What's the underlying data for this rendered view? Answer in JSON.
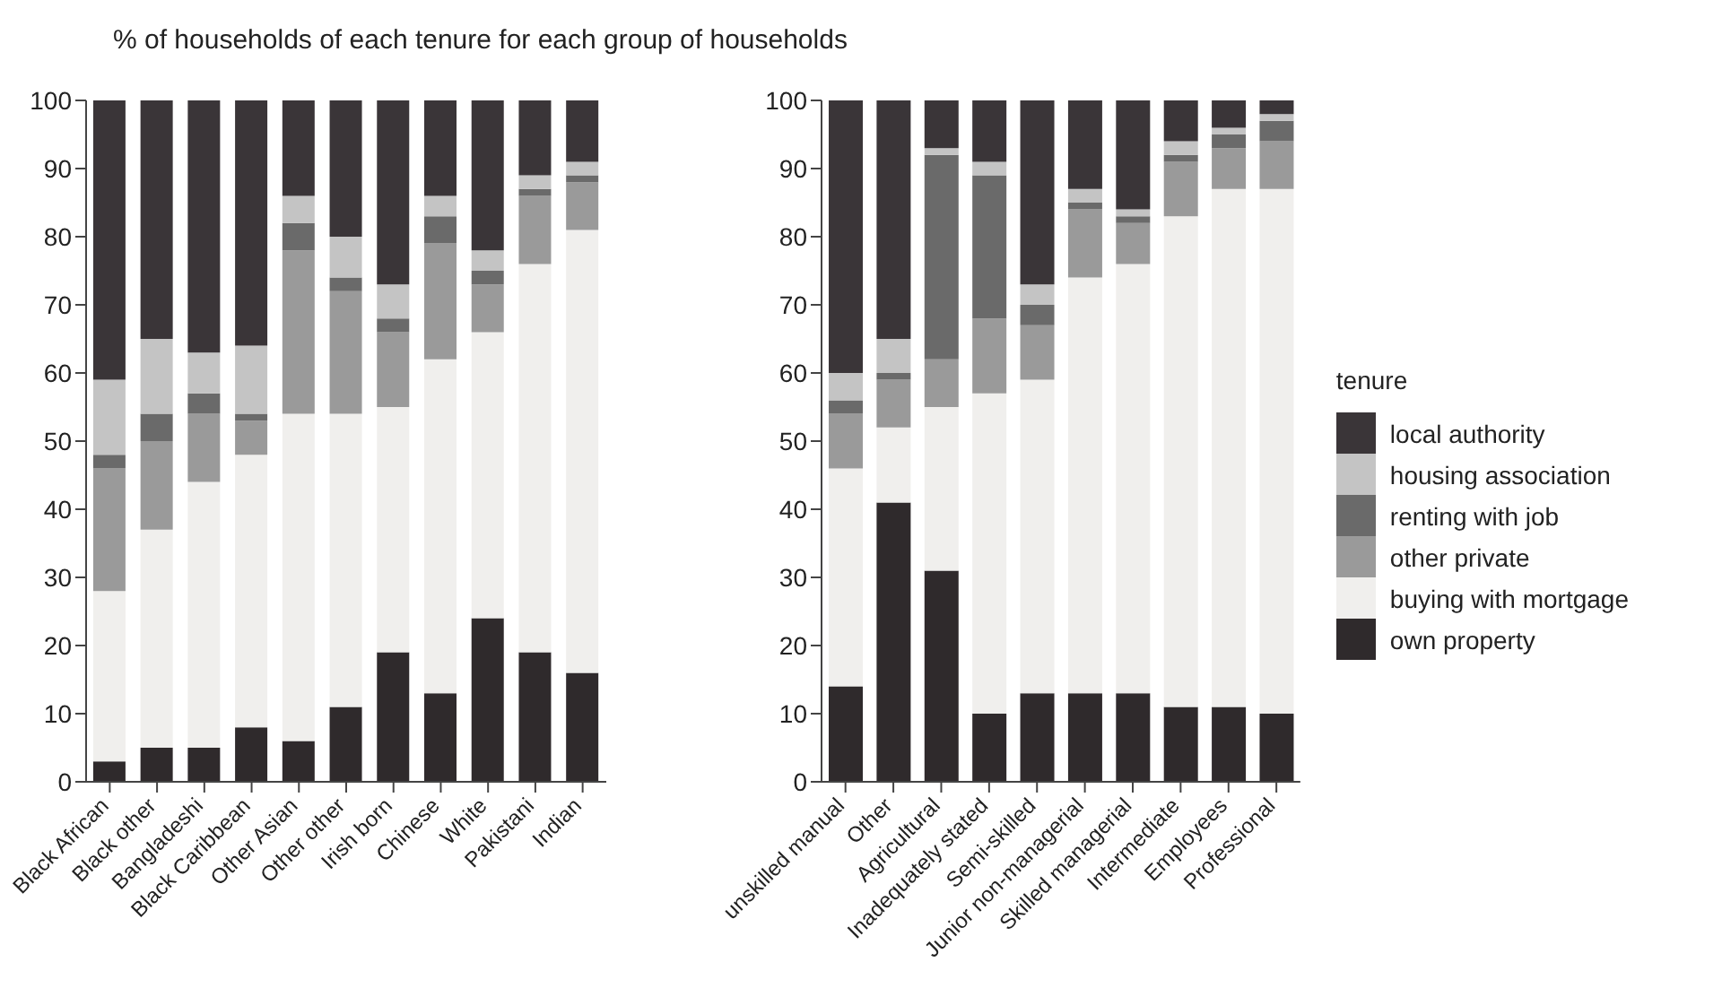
{
  "chart_data": [
    {
      "type": "bar",
      "title": "% of households of each tenure for each group of households",
      "stacked": true,
      "legend": false,
      "categories": [
        "Black African",
        "Black other",
        "Bangladeshi",
        "Black Caribbean",
        "Other Asian",
        "Other other",
        "Irish born",
        "Chinese",
        "White",
        "Pakistani",
        "Indian"
      ],
      "ylim": [
        0,
        100
      ],
      "yticks": [
        0,
        10,
        20,
        30,
        40,
        50,
        60,
        70,
        80,
        90,
        100
      ],
      "grid": false,
      "series": [
        {
          "color": "#2f2a2c",
          "values": [
            3,
            5,
            5,
            8,
            6,
            11,
            19,
            13,
            24,
            19,
            16
          ]
        },
        {
          "color": "#f0efed",
          "values": [
            25,
            32,
            39,
            40,
            48,
            43,
            36,
            49,
            42,
            57,
            65
          ]
        },
        {
          "color": "#9a9a9a",
          "values": [
            18,
            13,
            10,
            5,
            24,
            18,
            11,
            17,
            7,
            10,
            7
          ]
        },
        {
          "color": "#6a6a6a",
          "values": [
            2,
            4,
            3,
            1,
            4,
            2,
            2,
            4,
            2,
            1,
            1
          ]
        },
        {
          "color": "#c4c4c4",
          "values": [
            11,
            11,
            6,
            10,
            4,
            6,
            5,
            3,
            3,
            2,
            2
          ]
        },
        {
          "color": "#3a3538",
          "values": [
            41,
            35,
            37,
            36,
            14,
            20,
            27,
            14,
            22,
            11,
            9
          ]
        }
      ]
    },
    {
      "type": "bar",
      "stacked": true,
      "legend": "right",
      "legend_title": "tenure",
      "categories": [
        "unskilled manual",
        "Other",
        "Agricultural",
        "Inadequately stated",
        "Semi-skilled",
        "Junior non-managerial",
        "Skilled managerial",
        "Intermediate",
        "Employees",
        "Professional"
      ],
      "ylim": [
        0,
        100
      ],
      "yticks": [
        0,
        10,
        20,
        30,
        40,
        50,
        60,
        70,
        80,
        90,
        100
      ],
      "grid": false,
      "series": [
        {
          "name": "own property",
          "color": "#2f2a2c",
          "values": [
            14,
            41,
            31,
            10,
            13,
            13,
            13,
            11,
            11,
            10
          ]
        },
        {
          "name": "buying with mortgage",
          "color": "#f0efed",
          "values": [
            32,
            11,
            24,
            47,
            46,
            61,
            63,
            72,
            76,
            77
          ]
        },
        {
          "name": "other private",
          "color": "#9a9a9a",
          "values": [
            8,
            7,
            7,
            11,
            8,
            10,
            6,
            8,
            6,
            7
          ]
        },
        {
          "name": "renting with job",
          "color": "#6a6a6a",
          "values": [
            2,
            1,
            30,
            21,
            3,
            1,
            1,
            1,
            2,
            3
          ]
        },
        {
          "name": "housing association",
          "color": "#c4c4c4",
          "values": [
            4,
            5,
            1,
            2,
            3,
            2,
            1,
            2,
            1,
            1
          ]
        },
        {
          "name": "local authority",
          "color": "#3a3538",
          "values": [
            40,
            35,
            7,
            9,
            27,
            13,
            16,
            6,
            4,
            2
          ]
        }
      ]
    }
  ]
}
